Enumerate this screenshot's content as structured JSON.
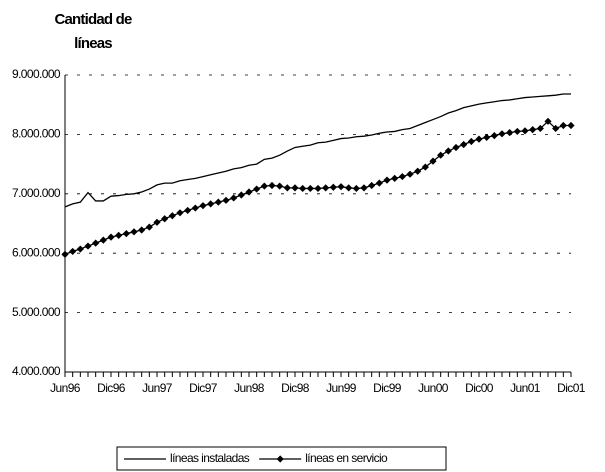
{
  "chart_data": {
    "type": "line",
    "title": "Cantidad de líneas",
    "categories": [
      "Jun96",
      null,
      null,
      null,
      null,
      null,
      "Dic96",
      null,
      null,
      null,
      null,
      null,
      "Jun97",
      null,
      null,
      null,
      null,
      null,
      "Dic97",
      null,
      null,
      null,
      null,
      null,
      "Jun98",
      null,
      null,
      null,
      null,
      null,
      "Dic98",
      null,
      null,
      null,
      null,
      null,
      "Jun99",
      null,
      null,
      null,
      null,
      null,
      "Dic99",
      null,
      null,
      null,
      null,
      null,
      "Jun00",
      null,
      null,
      null,
      null,
      null,
      "Dic00",
      null,
      null,
      null,
      null,
      null,
      "Jun01",
      null,
      null,
      null,
      null,
      null,
      "Dic01"
    ],
    "series": [
      {
        "name": "líneas instaladas",
        "color": "#000000",
        "marker": "none",
        "values": [
          6780000,
          6830000,
          6860000,
          7020000,
          6880000,
          6880000,
          6960000,
          6970000,
          6990000,
          7000000,
          7030000,
          7080000,
          7150000,
          7180000,
          7180000,
          7220000,
          7240000,
          7260000,
          7290000,
          7320000,
          7350000,
          7380000,
          7420000,
          7440000,
          7480000,
          7500000,
          7580000,
          7600000,
          7650000,
          7720000,
          7780000,
          7800000,
          7820000,
          7860000,
          7870000,
          7900000,
          7930000,
          7940000,
          7960000,
          7970000,
          7990000,
          8020000,
          8040000,
          8050000,
          8080000,
          8100000,
          8150000,
          8200000,
          8250000,
          8300000,
          8360000,
          8400000,
          8450000,
          8480000,
          8510000,
          8530000,
          8550000,
          8570000,
          8580000,
          8600000,
          8620000,
          8630000,
          8640000,
          8650000,
          8660000,
          8680000,
          8680000
        ]
      },
      {
        "name": "líneas en servicio",
        "color": "#000000",
        "marker": "diamond",
        "values": [
          5980000,
          6030000,
          6070000,
          6120000,
          6170000,
          6220000,
          6270000,
          6300000,
          6330000,
          6360000,
          6390000,
          6440000,
          6520000,
          6580000,
          6630000,
          6680000,
          6720000,
          6760000,
          6800000,
          6830000,
          6860000,
          6890000,
          6930000,
          6980000,
          7030000,
          7080000,
          7130000,
          7140000,
          7130000,
          7100000,
          7100000,
          7090000,
          7090000,
          7090000,
          7100000,
          7110000,
          7120000,
          7100000,
          7090000,
          7100000,
          7140000,
          7180000,
          7230000,
          7260000,
          7290000,
          7330000,
          7380000,
          7450000,
          7550000,
          7650000,
          7720000,
          7780000,
          7830000,
          7880000,
          7920000,
          7950000,
          7980000,
          8010000,
          8030000,
          8050000,
          8060000,
          8080000,
          8100000,
          8220000,
          8100000,
          8150000,
          8150000
        ]
      }
    ],
    "ylim": [
      4000000,
      9000000
    ],
    "yticks": [
      {
        "value": 4000000,
        "label": "4.000.000"
      },
      {
        "value": 5000000,
        "label": "5.000.000"
      },
      {
        "value": 6000000,
        "label": "6.000.000"
      },
      {
        "value": 7000000,
        "label": "7.000.000"
      },
      {
        "value": 8000000,
        "label": "8.000.000"
      },
      {
        "value": 9000000,
        "label": "9.000.000"
      }
    ],
    "grid": true,
    "legend": "bottom"
  }
}
